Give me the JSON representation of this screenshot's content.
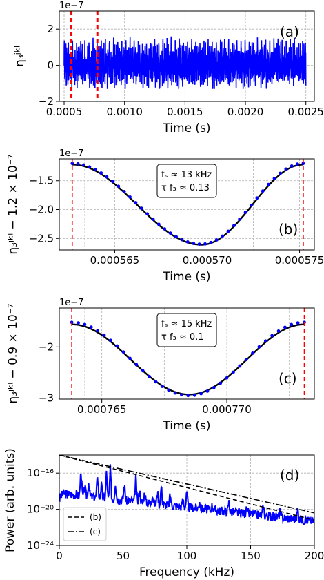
{
  "chart_data": [
    {
      "panel": "a",
      "type": "line",
      "panel_label": "(a)",
      "xlabel": "Time (s)",
      "ylabel": "η₃ʲᵏˡ",
      "y_offset_text": "1e−7",
      "xlim": [
        0.00046,
        0.00257
      ],
      "ylim": [
        -2,
        3
      ],
      "x_ticks": [
        0.0005,
        0.001,
        0.0015,
        0.002,
        0.0025
      ],
      "x_tick_labels": [
        "0.0005",
        "0.0010",
        "0.0015",
        "0.0020",
        "0.0025"
      ],
      "y_ticks": [
        -2,
        0,
        2
      ],
      "y_tick_labels": [
        "−2",
        "0",
        "2"
      ],
      "series": [
        {
          "color": "#0000ff",
          "style": "solid",
          "signal": {
            "t_start": 0.0005,
            "t_end": 0.0025,
            "peak_period": 3.4e-05,
            "max": 1.6,
            "min": -1.3
          }
        }
      ],
      "vlines": [
        0.00056,
        0.000775
      ],
      "vline_color": "#ff0000",
      "grid": true
    },
    {
      "panel": "b",
      "type": "line",
      "panel_label": "(b)",
      "xlabel": "Time (s)",
      "ylabel": "η₃ʲᵏˡ − 1.2 × 10⁻⁷",
      "y_offset_text": "1e−7",
      "xlim": [
        0.000562,
        0.0005758
      ],
      "ylim": [
        -2.7,
        -1.12
      ],
      "x_ticks": [
        0.000565,
        0.00057,
        0.000575
      ],
      "x_tick_labels": [
        "0.000565",
        "0.000570",
        "0.000575"
      ],
      "y_ticks": [
        -1.5,
        -2.0,
        -2.5
      ],
      "y_tick_labels": [
        "−1.5",
        "−2.0",
        "−2.5"
      ],
      "vlines": [
        0.0005627,
        0.0005752
      ],
      "vline_color": "#ff0000",
      "fit": {
        "x_start": 0.0005627,
        "x_end": 0.0005752,
        "x_min": 0.0005697,
        "y_edge": -1.22,
        "y_min": -2.61
      },
      "points": {
        "x_start": 0.0005627,
        "x_end": 0.0005752,
        "count": 41,
        "x_min": 0.0005697,
        "y_edge": -1.2,
        "y_min": -2.6
      },
      "annotation": {
        "line1": "fₛ ≈ 13 kHz",
        "line2": "τ f₃ ≈  0.13"
      },
      "grid": true
    },
    {
      "panel": "c",
      "type": "line",
      "panel_label": "(c)",
      "xlabel": "Time (s)",
      "ylabel": "η₃ʲᵏˡ − 0.9 × 10⁻⁷",
      "y_offset_text": "1e−7",
      "xlim": [
        0.0007633,
        0.0007735
      ],
      "ylim": [
        -3.02,
        -1.24
      ],
      "x_ticks": [
        0.000765,
        0.00077
      ],
      "x_tick_labels": [
        "0.000765",
        "0.000770"
      ],
      "y_ticks": [
        -2,
        -3
      ],
      "y_tick_labels": [
        "−2",
        "−3"
      ],
      "vlines": [
        0.0007638,
        0.0007731
      ],
      "vline_color": "#ff0000",
      "fit": {
        "x_start": 0.0007638,
        "x_end": 0.0007731,
        "x_min": 0.0007685,
        "y_edge": -1.56,
        "y_min": -2.93
      },
      "points": {
        "x_start": 0.0007638,
        "x_end": 0.0007731,
        "count": 37,
        "x_min": 0.0007685,
        "y_edge": -1.52,
        "y_min": -2.95
      },
      "annotation": {
        "line1": "fₛ ≈ 15 kHz",
        "line2": "τ f₃ ≈  0.1"
      },
      "grid": true
    },
    {
      "panel": "d",
      "type": "line",
      "panel_label": "(d)",
      "xlabel": "Frequency (kHz)",
      "ylabel": "Power (arb. units)",
      "xlim": [
        0,
        200
      ],
      "ylim_log10": [
        -24,
        -14
      ],
      "x_ticks": [
        0,
        50,
        100,
        150,
        200
      ],
      "x_tick_labels": [
        "0",
        "50",
        "100",
        "150",
        "200"
      ],
      "y_ticks_log10": [
        -16,
        -20,
        -24
      ],
      "y_tick_labels": [
        "10⁻¹⁶",
        "10⁻²⁰",
        "10⁻²⁴"
      ],
      "y_scale": "log",
      "series": [
        {
          "name": "(b)",
          "style": "dashed",
          "color": "#000000",
          "x": [
            0,
            200
          ],
          "log10_y": [
            -14.0,
            -21.2
          ]
        },
        {
          "name": "(c)",
          "style": "dashdot",
          "color": "#000000",
          "x": [
            0,
            200
          ],
          "log10_y": [
            -14.0,
            -20.4
          ]
        },
        {
          "color": "#0000ff",
          "style": "solid",
          "baseline_log10": [
            -18.2,
            -21.3
          ],
          "peaks_khz": [
            17,
            20,
            23,
            30,
            33,
            37,
            40,
            44,
            51,
            60,
            63,
            67,
            73,
            77,
            80,
            87,
            97,
            100,
            110,
            120,
            133,
            147,
            160,
            173,
            187
          ],
          "peaks_log10": [
            -15.7,
            -17.5,
            -17.0,
            -16.2,
            -17.3,
            -16.0,
            -15.5,
            -17.0,
            -17.2,
            -16.5,
            -17.8,
            -18.0,
            -18.3,
            -18.0,
            -17.4,
            -18.4,
            -18.8,
            -18.2,
            -19.0,
            -19.5,
            -19.2,
            -20.0,
            -19.6,
            -20.2,
            -20.0
          ]
        }
      ],
      "legend": {
        "position": "lower-left"
      },
      "grid": true
    }
  ]
}
